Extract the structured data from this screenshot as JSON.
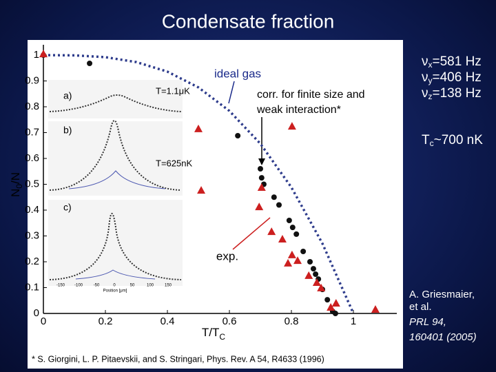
{
  "slide_title": "Condensate fraction",
  "chart_data": {
    "type": "scatter",
    "x_label": {
      "main": "T/T",
      "sub": "C"
    },
    "y_label": {
      "main": "N",
      "sub": "0",
      "rest": "/N"
    },
    "xlim": [
      0,
      1.14
    ],
    "ylim": [
      0,
      1.04
    ],
    "xticks": [
      0,
      0.2,
      0.4,
      0.6,
      0.8,
      1
    ],
    "yticks": [
      0,
      0.1,
      0.2,
      0.3,
      0.4,
      0.5,
      0.6,
      0.7,
      0.8,
      0.9,
      1
    ],
    "series": [
      {
        "name": "ideal gas",
        "color": "#2e3c8c",
        "marker": "dashed-line",
        "x": [
          0,
          0.1,
          0.2,
          0.3,
          0.4,
          0.5,
          0.6,
          0.7,
          0.8,
          0.9,
          1
        ],
        "values": [
          1,
          0.999,
          0.992,
          0.973,
          0.936,
          0.875,
          0.784,
          0.657,
          0.488,
          0.271,
          0
        ]
      },
      {
        "name": "corr. for finite size and weak interaction*",
        "color": "#111111",
        "marker": "circle",
        "x": [
          0,
          0.149,
          0.627,
          0.7,
          0.704,
          0.711,
          0.744,
          0.76,
          0.793,
          0.804,
          0.816,
          0.838,
          0.86,
          0.871,
          0.878,
          0.887,
          0.9,
          0.916,
          0.933,
          0.942
        ],
        "values": [
          1,
          0.968,
          0.688,
          0.56,
          0.525,
          0.5,
          0.45,
          0.42,
          0.36,
          0.333,
          0.307,
          0.24,
          0.2,
          0.173,
          0.152,
          0.133,
          0.093,
          0.053,
          0.008,
          0
        ]
      },
      {
        "name": "exp.",
        "color": "#cc1f1f",
        "marker": "triangle",
        "x": [
          0,
          0.5,
          0.509,
          0.696,
          0.704,
          0.736,
          0.771,
          0.789,
          0.802,
          0.802,
          0.82,
          0.856,
          0.882,
          0.896,
          0.927,
          0.944,
          1.071
        ],
        "values": [
          1.005,
          0.715,
          0.477,
          0.413,
          0.488,
          0.317,
          0.288,
          0.195,
          0.725,
          0.227,
          0.205,
          0.147,
          0.12,
          0.099,
          0.024,
          0.04,
          0.016
        ]
      }
    ]
  },
  "insets": [
    {
      "label": "a)",
      "temperature": "T=1.1μK"
    },
    {
      "label": "b)",
      "temperature": "T=625nK"
    },
    {
      "label": "c)"
    }
  ],
  "inset_axis": {
    "ticks": [
      "-150",
      "-100",
      "-50",
      "0",
      "50",
      "100",
      "150"
    ],
    "label": "Position [μm]"
  },
  "frequencies": [
    {
      "symbol": "ν",
      "sub": "x",
      "text": "=581 Hz"
    },
    {
      "symbol": "ν",
      "sub": "y",
      "text": "=406 Hz"
    },
    {
      "symbol": "ν",
      "sub": "z",
      "text": "=138 Hz"
    }
  ],
  "tc": {
    "main": "T",
    "sub": "c",
    "text": "~700 nK"
  },
  "citation": {
    "authors": [
      "A.  Griesmaier,",
      "et al."
    ],
    "journal": [
      "PRL 94,",
      "160401 (2005)"
    ]
  },
  "footnote": "* S. Giorgini, L. P. Pitaevskii, and S. Stringari, Phys. Rev. A 54, R4633 (1996)"
}
